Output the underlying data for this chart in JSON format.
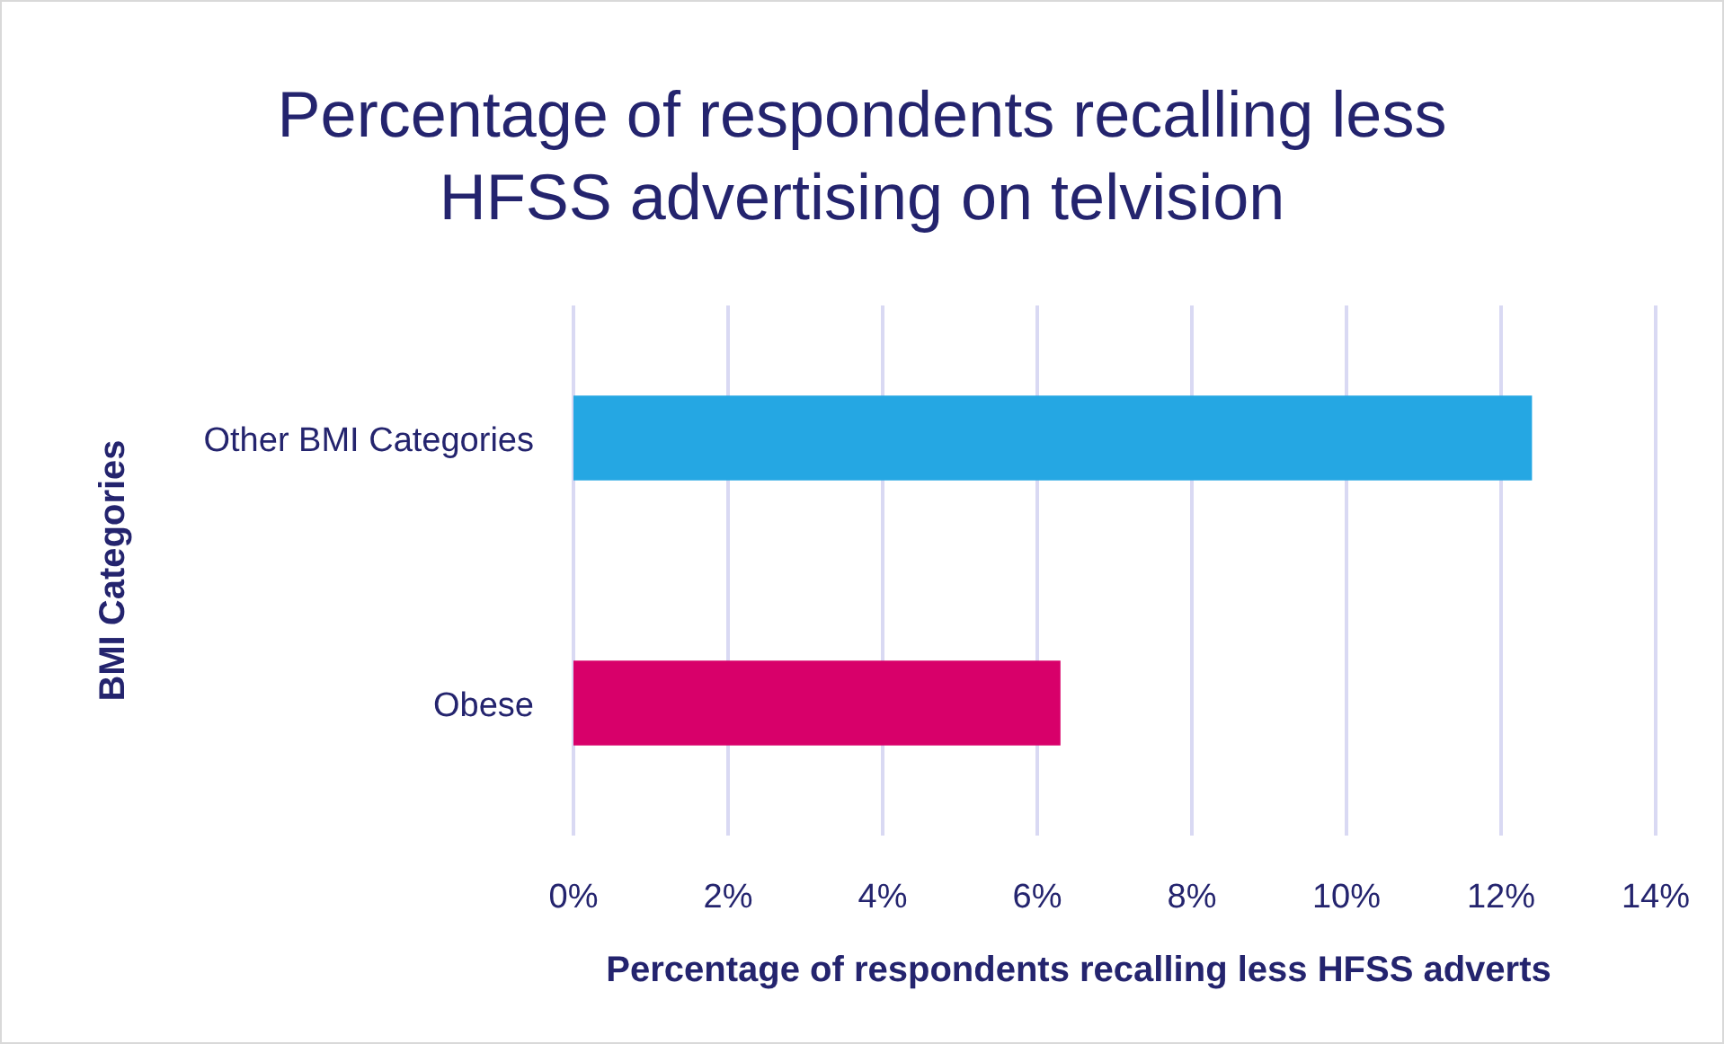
{
  "chart_data": {
    "type": "bar",
    "orientation": "horizontal",
    "title": "Percentage of respondents recalling less\nHFSS advertising on telvision",
    "xlabel": "Percentage of respondents recalling less HFSS adverts",
    "ylabel": "BMI Categories",
    "categories": [
      "Other BMI Categories",
      "Obese"
    ],
    "values": [
      12.4,
      6.3
    ],
    "colors": [
      "#25a7e3",
      "#d8006a"
    ],
    "xlim": [
      0,
      14
    ],
    "xticks": [
      {
        "value": 0,
        "label": "0%"
      },
      {
        "value": 2,
        "label": "2%"
      },
      {
        "value": 4,
        "label": "4%"
      },
      {
        "value": 6,
        "label": "6%"
      },
      {
        "value": 8,
        "label": "8%"
      },
      {
        "value": 10,
        "label": "10%"
      },
      {
        "value": 12,
        "label": "12%"
      },
      {
        "value": 14,
        "label": "14%"
      }
    ],
    "grid": "x"
  }
}
